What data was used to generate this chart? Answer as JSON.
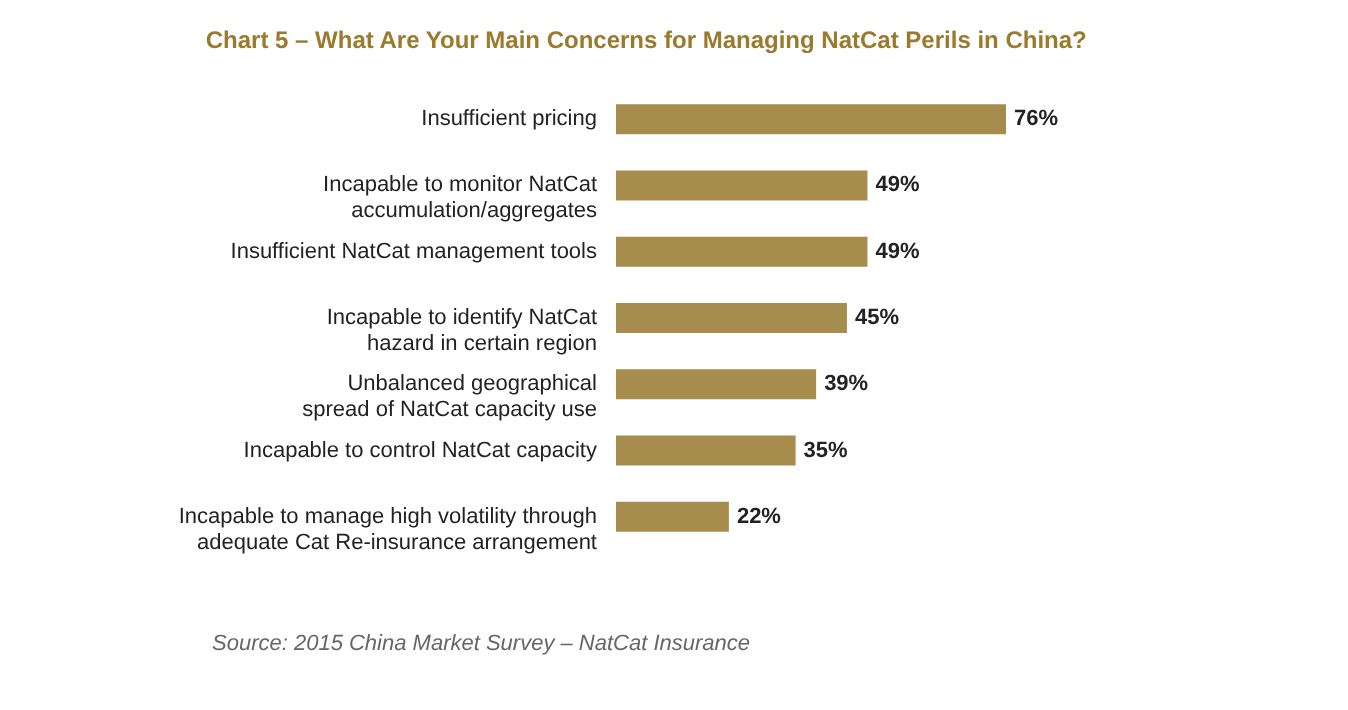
{
  "chart_data": {
    "type": "bar",
    "orientation": "horizontal",
    "title": "Chart 5 – What Are Your Main Concerns for Managing NatCat Perils in China?",
    "categories": [
      "Insufficient pricing",
      "Incapable to monitor NatCat accumulation/aggregates",
      "Insufficient NatCat management tools",
      "Incapable to identify NatCat hazard in certain region",
      "Unbalanced geographical spread of NatCat capacity use",
      "Incapable to control NatCat capacity",
      "Incapable to manage high volatility through adequate Cat Re-insurance arrangement"
    ],
    "values": [
      76,
      49,
      49,
      45,
      39,
      35,
      22
    ],
    "value_labels": [
      "76%",
      "49%",
      "49%",
      "45%",
      "39%",
      "35%",
      "22%"
    ],
    "color": "#a68d4e",
    "annotations": [
      "Source: 2015 China Market Survey – NatCat Insurance"
    ]
  }
}
